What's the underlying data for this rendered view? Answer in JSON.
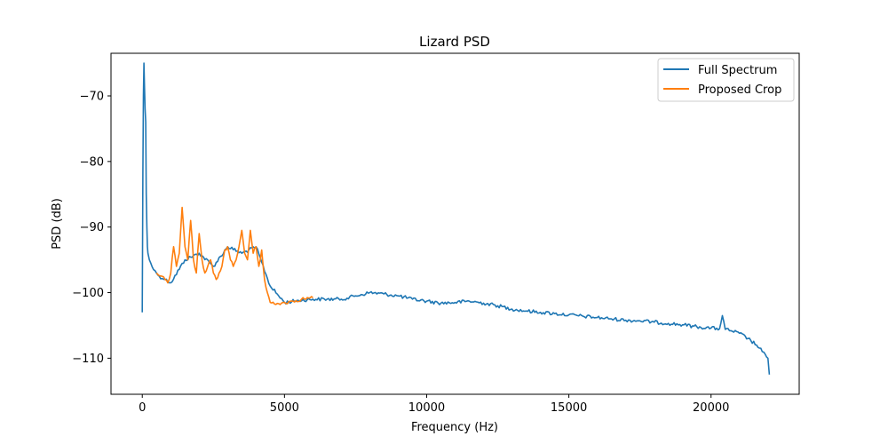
{
  "chart_data": {
    "type": "line",
    "title": "Lizard PSD",
    "xlabel": "Frequency (Hz)",
    "ylabel": "PSD (dB)",
    "xlim": [
      -1100,
      23100
    ],
    "ylim": [
      -115.5,
      -63.5
    ],
    "xticks": [
      0,
      5000,
      10000,
      15000,
      20000
    ],
    "xtick_labels": [
      "0",
      "5000",
      "10000",
      "15000",
      "20000"
    ],
    "yticks": [
      -70,
      -80,
      -90,
      -100,
      -110
    ],
    "ytick_labels": [
      "−70",
      "−80",
      "−90",
      "−100",
      "−110"
    ],
    "grid": false,
    "legend_position": "top-right",
    "series": [
      {
        "name": "Full Spectrum",
        "color": "#1f77b4",
        "x": [
          0,
          20,
          40,
          60,
          80,
          100,
          120,
          140,
          160,
          180,
          200,
          250,
          300,
          400,
          500,
          600,
          800,
          1000,
          1500,
          2000,
          2500,
          3000,
          3500,
          4000,
          4500,
          5000,
          5500,
          6000,
          6500,
          7000,
          7500,
          8000,
          8500,
          9000,
          9500,
          10000,
          10500,
          11000,
          11500,
          12000,
          12500,
          13000,
          13500,
          14000,
          14500,
          15000,
          15500,
          16000,
          16500,
          17000,
          17500,
          18000,
          18500,
          19000,
          19500,
          20000,
          20300,
          20400,
          20500,
          20700,
          21000,
          21300,
          21600,
          21800,
          21950,
          22000,
          22050
        ],
        "values": [
          -103,
          -82,
          -70,
          -65,
          -69,
          -72,
          -74,
          -85,
          -90,
          -93,
          -94,
          -95,
          -95.5,
          -96.5,
          -97,
          -97.5,
          -98,
          -98.5,
          -95,
          -94,
          -96,
          -93,
          -94,
          -93,
          -99,
          -101.5,
          -101.2,
          -101,
          -101,
          -101,
          -100.5,
          -100,
          -100.2,
          -100.5,
          -101,
          -101.3,
          -101.6,
          -101.5,
          -101.3,
          -101.6,
          -102,
          -102.5,
          -102.8,
          -103,
          -103.2,
          -103.4,
          -103.6,
          -103.8,
          -104,
          -104.2,
          -104.3,
          -104.5,
          -104.7,
          -104.9,
          -105.2,
          -105.4,
          -105.5,
          -103.5,
          -105.6,
          -105.8,
          -106.2,
          -107,
          -108,
          -109,
          -109.8,
          -110,
          -112.5
        ]
      },
      {
        "name": "Proposed Crop",
        "color": "#ff7f0e",
        "x": [
          500,
          700,
          900,
          1000,
          1100,
          1200,
          1300,
          1400,
          1500,
          1600,
          1700,
          1800,
          1900,
          2000,
          2100,
          2200,
          2300,
          2400,
          2500,
          2600,
          2700,
          2800,
          2900,
          3000,
          3100,
          3200,
          3300,
          3400,
          3500,
          3600,
          3700,
          3800,
          3900,
          4000,
          4100,
          4200,
          4300,
          4400,
          4500,
          4700,
          5000,
          5300,
          5600,
          5900,
          6000
        ],
        "values": [
          -97,
          -97.5,
          -98.5,
          -97,
          -93,
          -96,
          -94,
          -87,
          -93,
          -95,
          -89,
          -95,
          -97,
          -91,
          -95,
          -97,
          -96,
          -95,
          -97,
          -98,
          -97,
          -96,
          -93.5,
          -93,
          -95,
          -96,
          -95,
          -93,
          -90.5,
          -94,
          -95,
          -90.5,
          -94,
          -93,
          -96,
          -93.5,
          -98,
          -100,
          -101.5,
          -101.8,
          -101.5,
          -101.3,
          -101,
          -100.8,
          -100.8
        ]
      }
    ]
  }
}
